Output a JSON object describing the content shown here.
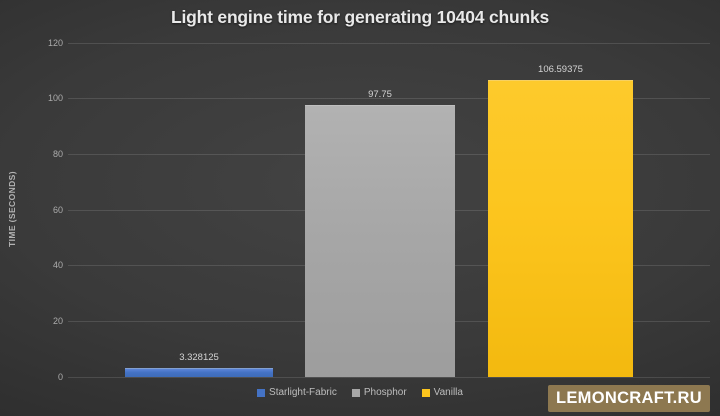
{
  "chart_data": {
    "type": "bar",
    "title": "Light engine time for generating 10404 chunks",
    "xlabel": "",
    "ylabel": "TIME (SECONDS)",
    "categories": [
      "Starlight-Fabric",
      "Phosphor",
      "Vanilla"
    ],
    "values": [
      3.328125,
      97.75,
      106.59375
    ],
    "data_labels": [
      "3.328125",
      "97.75",
      "106.59375"
    ],
    "bar_colors": [
      "#4472c4",
      "#a7a7a7",
      "#fcc51e"
    ],
    "ylim": [
      0,
      120
    ],
    "yticks": [
      0,
      20,
      40,
      60,
      80,
      100,
      120
    ],
    "grid": true,
    "legend_position": "bottom",
    "legend_entries": [
      "Starlight-Fabric",
      "Phosphor",
      "Vanilla"
    ]
  },
  "watermark": {
    "text": "LEMONCRAFT.RU",
    "background": "#8d7850"
  }
}
